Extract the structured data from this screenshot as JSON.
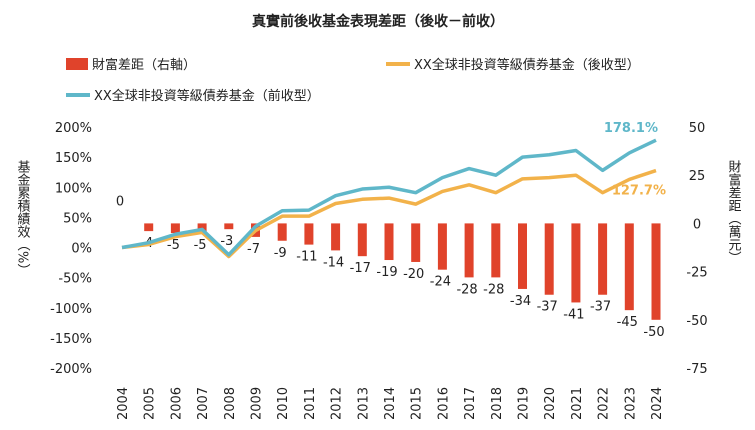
{
  "chart_data": {
    "type": "bar+line",
    "title": "真實前後收基金表現差距（後收－前收）",
    "categories": [
      "2004",
      "2005",
      "2006",
      "2007",
      "2008",
      "2009",
      "2010",
      "2011",
      "2012",
      "2013",
      "2014",
      "2015",
      "2016",
      "2017",
      "2018",
      "2019",
      "2020",
      "2021",
      "2022",
      "2023",
      "2024"
    ],
    "series": [
      {
        "name": "財富差距（右軸）",
        "type": "bar",
        "axis": "right",
        "color": "#e0432b",
        "values": [
          0,
          -4,
          -5,
          -5,
          -3,
          -7,
          -9,
          -11,
          -14,
          -17,
          -19,
          -20,
          -24,
          -28,
          -28,
          -34,
          -37,
          -41,
          -37,
          -45,
          -50
        ],
        "labels": [
          "0",
          "-4",
          "-5",
          "-5",
          "-3",
          "-7",
          "-9",
          "-11",
          "-14",
          "-17",
          "-19",
          "-20",
          "-24",
          "-28",
          "-28",
          "-34",
          "-37",
          "-41",
          "-37",
          "-45",
          "-50"
        ]
      },
      {
        "name": "XX全球非投資等級債券基金（後收型）",
        "type": "line",
        "axis": "left",
        "color": "#f2b24a",
        "values": [
          0,
          5,
          18,
          25,
          -15,
          28,
          52,
          52,
          73,
          80,
          82,
          72,
          93,
          104,
          91,
          114,
          116,
          120,
          91,
          113,
          127.7
        ]
      },
      {
        "name": "XX全球非投資等級債券基金（前收型）",
        "type": "line",
        "axis": "left",
        "color": "#5fb7c9",
        "values": [
          0,
          8,
          22,
          30,
          -12,
          35,
          61,
          62,
          86,
          97,
          100,
          91,
          116,
          131,
          120,
          150,
          154,
          161,
          128,
          157,
          178.1
        ]
      }
    ],
    "end_labels": [
      "178.1%",
      "127.7%"
    ],
    "y_left": {
      "label": "基金累積績效（%）",
      "ylim": [
        -200,
        200
      ],
      "ticks": [
        "200%",
        "150%",
        "100%",
        "50%",
        "0%",
        "-50%",
        "-100%",
        "-150%",
        "-200%"
      ]
    },
    "y_right": {
      "label": "財富差距（萬元）",
      "ylim": [
        -75,
        50
      ],
      "ticks": [
        "50",
        "25",
        "0",
        "-25",
        "-50",
        "-75"
      ]
    },
    "legend_position": "top",
    "grid": false
  }
}
